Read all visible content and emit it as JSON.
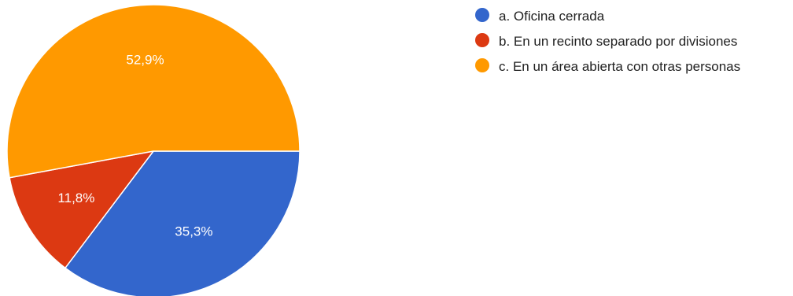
{
  "chart_data": {
    "type": "pie",
    "slices": [
      {
        "key": "a",
        "label": "a. Oficina cerrada",
        "value": 35.3,
        "value_label": "35,3%",
        "color": "#3366cc"
      },
      {
        "key": "b",
        "label": "b. En un recinto separado por divisiones",
        "value": 11.8,
        "value_label": "11,8%",
        "color": "#dc3912"
      },
      {
        "key": "c",
        "label": "c. En un área abierta con otras personas",
        "value": 52.9,
        "value_label": "52,9%",
        "color": "#ff9900"
      }
    ],
    "start_angle": "3 o'clock",
    "direction": "clockwise",
    "legend_position": "right"
  }
}
